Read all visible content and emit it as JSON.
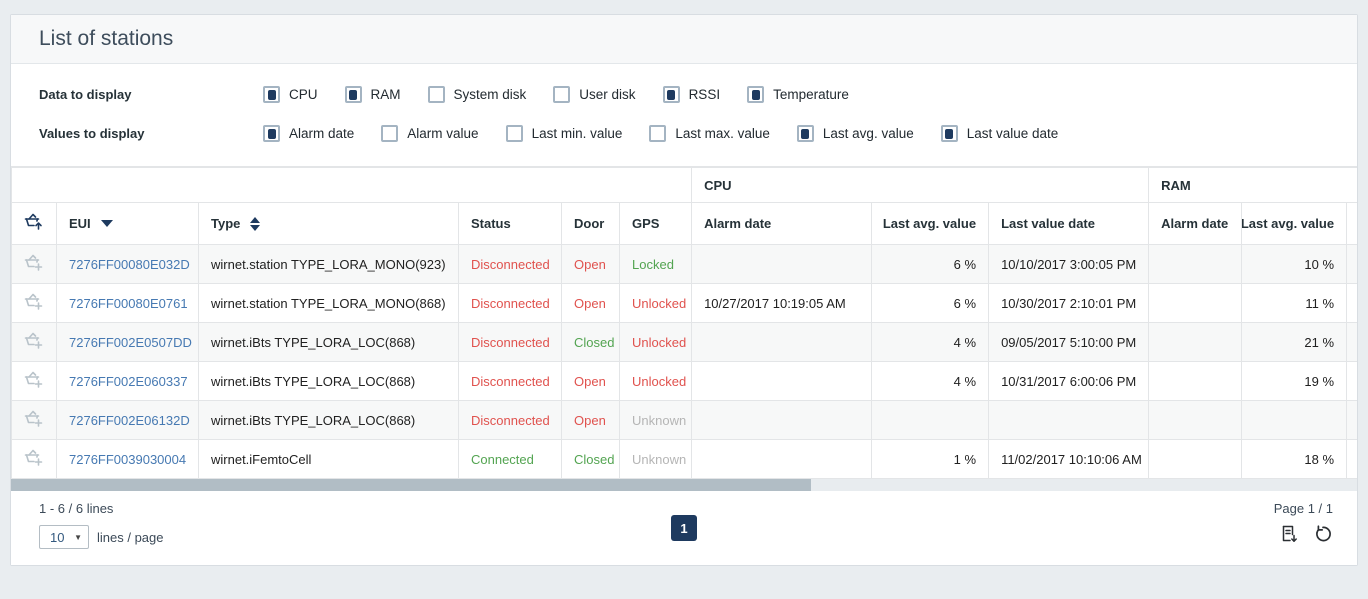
{
  "panel": {
    "title": "List of stations"
  },
  "filters": {
    "data_label": "Data to display",
    "values_label": "Values to display",
    "data_options": [
      {
        "label": "CPU",
        "checked": true
      },
      {
        "label": "RAM",
        "checked": true
      },
      {
        "label": "System disk",
        "checked": false
      },
      {
        "label": "User disk",
        "checked": false
      },
      {
        "label": "RSSI",
        "checked": true
      },
      {
        "label": "Temperature",
        "checked": true
      }
    ],
    "value_options": [
      {
        "label": "Alarm date",
        "checked": true
      },
      {
        "label": "Alarm value",
        "checked": false
      },
      {
        "label": "Last min. value",
        "checked": false
      },
      {
        "label": "Last max. value",
        "checked": false
      },
      {
        "label": "Last avg. value",
        "checked": true
      },
      {
        "label": "Last value date",
        "checked": true
      }
    ]
  },
  "table": {
    "groups": [
      {
        "label": "",
        "span": 6
      },
      {
        "label": "CPU",
        "span": 3
      },
      {
        "label": "RAM",
        "span": 3
      }
    ],
    "columns": [
      {
        "key": "basket",
        "label": "",
        "sort": null
      },
      {
        "key": "eui",
        "label": "EUI",
        "sort": "desc"
      },
      {
        "key": "type",
        "label": "Type",
        "sort": "both"
      },
      {
        "key": "status",
        "label": "Status",
        "sort": null
      },
      {
        "key": "door",
        "label": "Door",
        "sort": null
      },
      {
        "key": "gps",
        "label": "GPS",
        "sort": null
      },
      {
        "key": "cpu_alarm",
        "label": "Alarm date",
        "sort": null
      },
      {
        "key": "cpu_avg",
        "label": "Last avg. value",
        "sort": null
      },
      {
        "key": "cpu_date",
        "label": "Last value date",
        "sort": null
      },
      {
        "key": "ram_alarm",
        "label": "Alarm date",
        "sort": null
      },
      {
        "key": "ram_avg",
        "label": "Last avg. value",
        "sort": null
      },
      {
        "key": "ram_sliver",
        "label": "",
        "sort": null
      }
    ],
    "rows": [
      {
        "eui": "7276FF00080E032D",
        "type": "wirnet.station TYPE_LORA_MONO(923)",
        "status": "Disconnected",
        "door": "Open",
        "gps": "Locked",
        "cpu_alarm": "",
        "cpu_avg": "6 %",
        "cpu_date": "10/10/2017 3:00:05 PM",
        "ram_alarm": "",
        "ram_avg": "10 %",
        "ram_sliver": ""
      },
      {
        "eui": "7276FF00080E0761",
        "type": "wirnet.station TYPE_LORA_MONO(868)",
        "status": "Disconnected",
        "door": "Open",
        "gps": "Unlocked",
        "cpu_alarm": "10/27/2017 10:19:05 AM",
        "cpu_avg": "6 %",
        "cpu_date": "10/30/2017 2:10:01 PM",
        "ram_alarm": "",
        "ram_avg": "11 %",
        "ram_sliver": ""
      },
      {
        "eui": "7276FF002E0507DD",
        "type": "wirnet.iBts TYPE_LORA_LOC(868)",
        "status": "Disconnected",
        "door": "Closed",
        "gps": "Unlocked",
        "cpu_alarm": "",
        "cpu_avg": "4 %",
        "cpu_date": "09/05/2017 5:10:00 PM",
        "ram_alarm": "",
        "ram_avg": "21 %",
        "ram_sliver": ""
      },
      {
        "eui": "7276FF002E060337",
        "type": "wirnet.iBts TYPE_LORA_LOC(868)",
        "status": "Disconnected",
        "door": "Open",
        "gps": "Unlocked",
        "cpu_alarm": "",
        "cpu_avg": "4 %",
        "cpu_date": "10/31/2017 6:00:06 PM",
        "ram_alarm": "",
        "ram_avg": "19 %",
        "ram_sliver": ""
      },
      {
        "eui": "7276FF002E06132D",
        "type": "wirnet.iBts TYPE_LORA_LOC(868)",
        "status": "Disconnected",
        "door": "Open",
        "gps": "Unknown",
        "cpu_alarm": "",
        "cpu_avg": "",
        "cpu_date": "",
        "ram_alarm": "",
        "ram_avg": "",
        "ram_sliver": ""
      },
      {
        "eui": "7276FF0039030004",
        "type": "wirnet.iFemtoCell",
        "status": "Connected",
        "door": "Closed",
        "gps": "Unknown",
        "cpu_alarm": "",
        "cpu_avg": "1 %",
        "cpu_date": "11/02/2017 10:10:06 AM",
        "ram_alarm": "",
        "ram_avg": "18 %",
        "ram_sliver": ""
      }
    ],
    "value_colors": {
      "Disconnected": "#e0524e",
      "Connected": "#53a451",
      "Open": "#e0524e",
      "Closed": "#53a451",
      "Locked": "#53a451",
      "Unlocked": "#e0524e",
      "Unknown": "#b5b5b5"
    }
  },
  "footer": {
    "lines_count": "1 - 6 / 6 lines",
    "lines_per_page": "10",
    "lines_per_page_label": "lines / page",
    "current_page": "1",
    "page_indicator": "Page 1 / 1"
  },
  "colors": {
    "accent": "#1e3a5f",
    "link": "#4679b2"
  }
}
